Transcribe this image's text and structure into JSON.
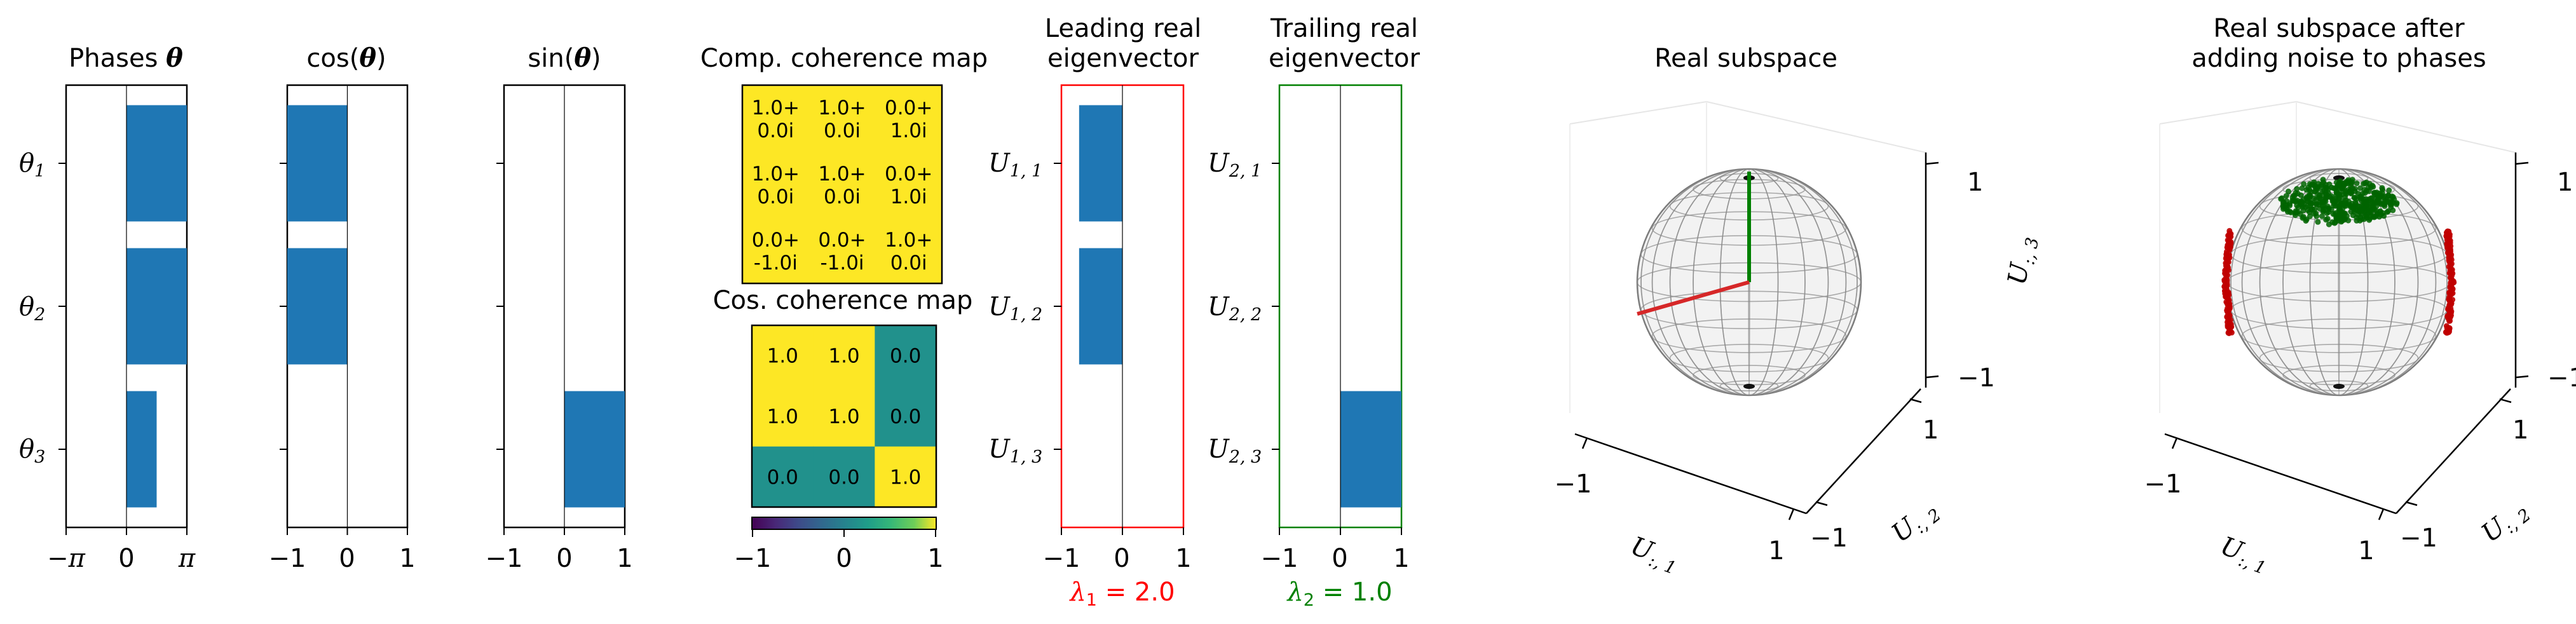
{
  "chart_data": [
    {
      "type": "bar",
      "orientation": "horizontal",
      "title": "Phases θ",
      "categories": [
        "θ1",
        "θ2",
        "θ3"
      ],
      "values": [
        3.14,
        3.14,
        1.57
      ],
      "xlim": [
        -3.1416,
        3.1416
      ],
      "xticks": [
        "−π",
        "0",
        "π"
      ],
      "color": "#1f77b4"
    },
    {
      "type": "bar",
      "orientation": "horizontal",
      "title": "cos(θ)",
      "categories": [
        "θ1",
        "θ2",
        "θ3"
      ],
      "values": [
        -1.0,
        -1.0,
        0.0
      ],
      "xlim": [
        -1,
        1
      ],
      "xticks": [
        "−1",
        "0",
        "1"
      ],
      "color": "#1f77b4"
    },
    {
      "type": "bar",
      "orientation": "horizontal",
      "title": "sin(θ)",
      "categories": [
        "θ1",
        "θ2",
        "θ3"
      ],
      "values": [
        0.0,
        0.0,
        1.0
      ],
      "xlim": [
        -1,
        1
      ],
      "xticks": [
        "−1",
        "0",
        "1"
      ],
      "color": "#1f77b4"
    },
    {
      "type": "heatmap",
      "title": "Comp. coherence map",
      "rows": [
        [
          [
            "1.0+",
            "0.0i"
          ],
          [
            "1.0+",
            "0.0i"
          ],
          [
            "0.0+",
            "1.0i"
          ]
        ],
        [
          [
            "1.0+",
            "0.0i"
          ],
          [
            "1.0+",
            "0.0i"
          ],
          [
            "0.0+",
            "1.0i"
          ]
        ],
        [
          [
            "0.0+",
            "-1.0i"
          ],
          [
            "0.0+",
            "-1.0i"
          ],
          [
            "1.0+",
            "0.0i"
          ]
        ]
      ],
      "cell_color": "#fde725"
    },
    {
      "type": "heatmap",
      "title": "Cos. coherence map",
      "values": [
        [
          1.0,
          1.0,
          0.0
        ],
        [
          1.0,
          1.0,
          0.0
        ],
        [
          0.0,
          0.0,
          1.0
        ]
      ],
      "labels": [
        [
          "1.0",
          "1.0",
          "0.0"
        ],
        [
          "1.0",
          "1.0",
          "0.0"
        ],
        [
          "0.0",
          "0.0",
          "1.0"
        ]
      ],
      "colormap": "viridis",
      "vlim": [
        -1,
        1
      ],
      "colorbar_ticks": [
        "−1",
        "0",
        "1"
      ]
    },
    {
      "type": "bar",
      "orientation": "horizontal",
      "title": "Leading real eigenvector",
      "categories": [
        "U1,1",
        "U1,2",
        "U1,3"
      ],
      "values": [
        -0.71,
        -0.71,
        0.0
      ],
      "xlim": [
        -1,
        1
      ],
      "xticks": [
        "−1",
        "0",
        "1"
      ],
      "color": "#1f77b4",
      "frame_color": "#ff0000",
      "eigenvalue": "λ1 = 2.0",
      "eigenvalue_color": "#ff0000"
    },
    {
      "type": "bar",
      "orientation": "horizontal",
      "title": "Trailing real eigenvector",
      "categories": [
        "U2,1",
        "U2,2",
        "U2,3"
      ],
      "values": [
        0.0,
        0.0,
        1.0
      ],
      "xlim": [
        -1,
        1
      ],
      "xticks": [
        "−1",
        "0",
        "1"
      ],
      "color": "#1f77b4",
      "frame_color": "#008000",
      "eigenvalue": "λ2 = 1.0",
      "eigenvalue_color": "#008000"
    },
    {
      "type": "scatter3d",
      "title": "Real subspace",
      "axes": [
        "U:,1",
        "U:,2",
        "U:,3"
      ],
      "ticks": [
        "−1",
        "1"
      ],
      "vectors": [
        {
          "color": "#d62728",
          "role": "leading",
          "xyz": [
            -0.71,
            -0.71,
            0.0
          ]
        },
        {
          "color": "#008000",
          "role": "trailing",
          "xyz": [
            0.0,
            0.0,
            1.0
          ]
        }
      ]
    },
    {
      "type": "scatter3d",
      "title": "Real subspace after adding noise to phases",
      "axes": [
        "U:,1",
        "U:,2",
        "U:,3"
      ],
      "ticks": [
        "−1",
        "1"
      ],
      "point_clouds": [
        {
          "color": "#006400",
          "region": "top cap"
        },
        {
          "color": "#c00000",
          "region": "equator arcs"
        }
      ]
    }
  ],
  "text": {
    "p1": {
      "title": "Phases ",
      "title_bold": "θ",
      "yl": [
        "θ",
        "θ",
        "θ"
      ],
      "ys": [
        "1",
        "2",
        "3"
      ],
      "xt": [
        "−π",
        "0",
        "π"
      ]
    },
    "p2": {
      "a": "cos(",
      "b": "θ",
      "c": ")",
      "xt": [
        "−1",
        "0",
        "1"
      ]
    },
    "p3": {
      "a": "sin(",
      "b": "θ",
      "c": ")",
      "xt": [
        "−1",
        "0",
        "1"
      ]
    },
    "p4": {
      "title": "Comp. coherence map",
      "title2": "Cos. coherence map",
      "cbt": [
        "−1",
        "0",
        "1"
      ]
    },
    "p5": {
      "t1": "Leading real",
      "t2": "eigenvector",
      "yl": [
        "U",
        "U",
        "U"
      ],
      "ys": [
        "1, 1",
        "1, 2",
        "1, 3"
      ],
      "xt": [
        "−1",
        "0",
        "1"
      ],
      "lam": "λ",
      "lamsub": "1",
      "lamval": " = 2.0"
    },
    "p6": {
      "t1": "Trailing real",
      "t2": "eigenvector",
      "yl": [
        "U",
        "U",
        "U"
      ],
      "ys": [
        "2, 1",
        "2, 2",
        "2, 3"
      ],
      "xt": [
        "−1",
        "0",
        "1"
      ],
      "lam": "λ",
      "lamsub": "2",
      "lamval": " = 1.0"
    },
    "p7": {
      "title": "Real subspace",
      "z": "U",
      "zs": ":, 3",
      "x": "U",
      "xs": ":, 1",
      "y": "U",
      "ys": ":, 2",
      "zt": [
        "1",
        "−1"
      ],
      "xt": [
        "−1",
        "1"
      ],
      "yt": [
        "1",
        "−1"
      ]
    },
    "p8": {
      "t1": "Real subspace after",
      "t2": "adding noise to phases",
      "z": "U",
      "zs": ":, 3",
      "x": "U",
      "xs": ":, 1",
      "y": "U",
      "ys": ":, 2",
      "zt": [
        "1",
        "−1"
      ],
      "xt": [
        "−1",
        "1"
      ],
      "yt": [
        "1",
        "−1"
      ]
    }
  }
}
